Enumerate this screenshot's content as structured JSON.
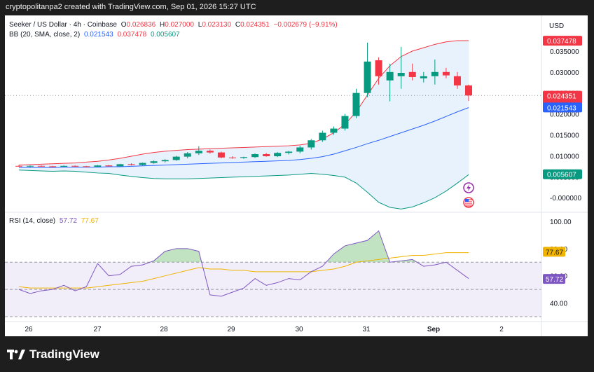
{
  "header": {
    "text": "cryptopolitanpa2 created with TradingView.com, Sep 01, 2026 15:27 UTC"
  },
  "legend": {
    "symbol": "Seeker / US Dollar · 4h · Coinbase",
    "o_label": "O",
    "o": "0.026836",
    "h_label": "H",
    "h": "0.027000",
    "l_label": "L",
    "l": "0.023130",
    "c_label": "C",
    "c": "0.024351",
    "change": "−0.002679 (−9.91%)",
    "bb_label": "BB (20, SMA, close, 2)",
    "bb_basis": "0.021543",
    "bb_upper": "0.037478",
    "bb_lower": "0.005607",
    "rsi_label": "RSI (14, close)",
    "rsi_value": "57.72",
    "rsi_ma": "77.67"
  },
  "currency_label": "USD",
  "brand": {
    "name": "TradingView"
  },
  "icons": [
    "lightning-icon",
    "us-flag-icon"
  ],
  "colors": {
    "up": "#089981",
    "down": "#f23645",
    "bb_basis": "#2962ff",
    "bb_upper": "#f23645",
    "bb_lower": "#089981",
    "bb_fill": "#e8f2fd",
    "rsi": "#7e57c2",
    "rsi_ma": "#f0b400"
  },
  "chart_data": [
    {
      "type": "candlestick",
      "title": "Seeker / US Dollar · 4h · Coinbase",
      "x_ticks": [
        "26",
        "27",
        "28",
        "29",
        "30",
        "31",
        "Sep",
        "2"
      ],
      "y_ticks": [
        "0.035000",
        "0.030000",
        "0.025000",
        "0.020000",
        "0.015000",
        "0.010000",
        "0.005000",
        "-0.000000"
      ],
      "ylim": [
        -0.0013,
        0.0405
      ],
      "grid": false,
      "last_price_label": "0.024351",
      "countdown_label": "32:19",
      "candles": [
        {
          "o": 0.0076,
          "h": 0.0078,
          "l": 0.0074,
          "c": 0.0075
        },
        {
          "o": 0.0075,
          "h": 0.0077,
          "l": 0.0073,
          "c": 0.0076
        },
        {
          "o": 0.0076,
          "h": 0.0077,
          "l": 0.0074,
          "c": 0.0075
        },
        {
          "o": 0.0075,
          "h": 0.0076,
          "l": 0.0073,
          "c": 0.0074
        },
        {
          "o": 0.0074,
          "h": 0.0077,
          "l": 0.0073,
          "c": 0.0076
        },
        {
          "o": 0.0076,
          "h": 0.0077,
          "l": 0.0074,
          "c": 0.0075
        },
        {
          "o": 0.0075,
          "h": 0.0076,
          "l": 0.0073,
          "c": 0.0074
        },
        {
          "o": 0.0074,
          "h": 0.0078,
          "l": 0.0073,
          "c": 0.0077
        },
        {
          "o": 0.0077,
          "h": 0.0078,
          "l": 0.0074,
          "c": 0.0075
        },
        {
          "o": 0.0075,
          "h": 0.0081,
          "l": 0.0074,
          "c": 0.008
        },
        {
          "o": 0.008,
          "h": 0.0082,
          "l": 0.0077,
          "c": 0.0078
        },
        {
          "o": 0.0078,
          "h": 0.0084,
          "l": 0.0077,
          "c": 0.0083
        },
        {
          "o": 0.0083,
          "h": 0.0089,
          "l": 0.0081,
          "c": 0.0087
        },
        {
          "o": 0.0087,
          "h": 0.0092,
          "l": 0.0084,
          "c": 0.009
        },
        {
          "o": 0.009,
          "h": 0.01,
          "l": 0.0088,
          "c": 0.0098
        },
        {
          "o": 0.0098,
          "h": 0.0109,
          "l": 0.0094,
          "c": 0.0106
        },
        {
          "o": 0.0106,
          "h": 0.0123,
          "l": 0.0102,
          "c": 0.0112
        },
        {
          "o": 0.0112,
          "h": 0.0115,
          "l": 0.0105,
          "c": 0.0108
        },
        {
          "o": 0.0108,
          "h": 0.011,
          "l": 0.0094,
          "c": 0.0096
        },
        {
          "o": 0.0096,
          "h": 0.0099,
          "l": 0.0093,
          "c": 0.0095
        },
        {
          "o": 0.0095,
          "h": 0.0098,
          "l": 0.0093,
          "c": 0.0097
        },
        {
          "o": 0.0097,
          "h": 0.0106,
          "l": 0.0095,
          "c": 0.0104
        },
        {
          "o": 0.0104,
          "h": 0.0107,
          "l": 0.0098,
          "c": 0.0099
        },
        {
          "o": 0.0099,
          "h": 0.0109,
          "l": 0.0097,
          "c": 0.0107
        },
        {
          "o": 0.0107,
          "h": 0.0112,
          "l": 0.0103,
          "c": 0.011
        },
        {
          "o": 0.011,
          "h": 0.0124,
          "l": 0.0106,
          "c": 0.012
        },
        {
          "o": 0.012,
          "h": 0.014,
          "l": 0.0115,
          "c": 0.0137
        },
        {
          "o": 0.0137,
          "h": 0.016,
          "l": 0.0133,
          "c": 0.0155
        },
        {
          "o": 0.0155,
          "h": 0.017,
          "l": 0.015,
          "c": 0.0165
        },
        {
          "o": 0.0165,
          "h": 0.02,
          "l": 0.016,
          "c": 0.0195
        },
        {
          "o": 0.0195,
          "h": 0.026,
          "l": 0.019,
          "c": 0.025
        },
        {
          "o": 0.025,
          "h": 0.037,
          "l": 0.024,
          "c": 0.0325
        },
        {
          "o": 0.0328,
          "h": 0.0335,
          "l": 0.027,
          "c": 0.029
        },
        {
          "o": 0.028,
          "h": 0.032,
          "l": 0.023,
          "c": 0.03
        },
        {
          "o": 0.029,
          "h": 0.036,
          "l": 0.026,
          "c": 0.0298
        },
        {
          "o": 0.03,
          "h": 0.032,
          "l": 0.028,
          "c": 0.0288
        },
        {
          "o": 0.0285,
          "h": 0.03,
          "l": 0.0275,
          "c": 0.029
        },
        {
          "o": 0.029,
          "h": 0.033,
          "l": 0.027,
          "c": 0.03
        },
        {
          "o": 0.03,
          "h": 0.031,
          "l": 0.0285,
          "c": 0.0292
        },
        {
          "o": 0.029,
          "h": 0.03,
          "l": 0.026,
          "c": 0.0268
        },
        {
          "o": 0.0268,
          "h": 0.027,
          "l": 0.0231,
          "c": 0.0244
        }
      ],
      "bollinger": {
        "upper": [
          0.0078,
          0.0079,
          0.008,
          0.0081,
          0.0082,
          0.0083,
          0.0085,
          0.0087,
          0.009,
          0.0094,
          0.0099,
          0.0104,
          0.0108,
          0.0111,
          0.0113,
          0.0115,
          0.0116,
          0.0117,
          0.0118,
          0.0119,
          0.012,
          0.0121,
          0.0122,
          0.0123,
          0.0124,
          0.0126,
          0.013,
          0.014,
          0.0155,
          0.0175,
          0.0205,
          0.0245,
          0.0285,
          0.0315,
          0.0337,
          0.035,
          0.0358,
          0.0366,
          0.0372,
          0.0375,
          0.0375
        ],
        "basis": [
          0.0072,
          0.0072,
          0.0072,
          0.0072,
          0.0073,
          0.0073,
          0.0073,
          0.0073,
          0.0074,
          0.0074,
          0.0075,
          0.0076,
          0.0077,
          0.0078,
          0.0079,
          0.008,
          0.0081,
          0.0082,
          0.0083,
          0.0084,
          0.0085,
          0.0086,
          0.0087,
          0.0088,
          0.0089,
          0.0091,
          0.0094,
          0.0098,
          0.0104,
          0.0112,
          0.012,
          0.0129,
          0.0137,
          0.0146,
          0.0155,
          0.0164,
          0.0173,
          0.0183,
          0.0194,
          0.0205,
          0.0215
        ]
      }
    },
    {
      "type": "line",
      "title": "RSI (14, close)",
      "y_ticks": [
        "100.00",
        "80.00",
        "60.00",
        "40.00"
      ],
      "ylim": [
        30,
        101
      ],
      "bands": [
        70,
        50,
        30
      ],
      "series": [
        {
          "name": "RSI",
          "values": [
            50,
            47,
            49,
            50,
            53,
            49,
            52,
            69,
            60,
            61,
            67,
            68,
            71,
            78,
            80,
            80,
            78,
            46,
            45,
            48,
            51,
            58,
            53,
            55,
            58,
            57,
            63,
            67,
            76,
            82,
            84,
            86,
            93,
            70,
            71,
            72,
            67,
            68,
            70,
            64,
            58
          ]
        },
        {
          "name": "MA",
          "values": [
            52,
            51,
            51,
            51,
            51,
            51,
            51,
            52,
            53,
            54,
            55,
            56,
            58,
            60,
            62,
            64,
            66,
            65,
            65,
            64,
            64,
            63,
            63,
            63,
            63,
            63,
            63,
            64,
            65,
            67,
            70,
            71,
            72,
            73,
            74,
            75,
            75,
            76,
            77,
            77,
            77
          ]
        }
      ]
    }
  ]
}
